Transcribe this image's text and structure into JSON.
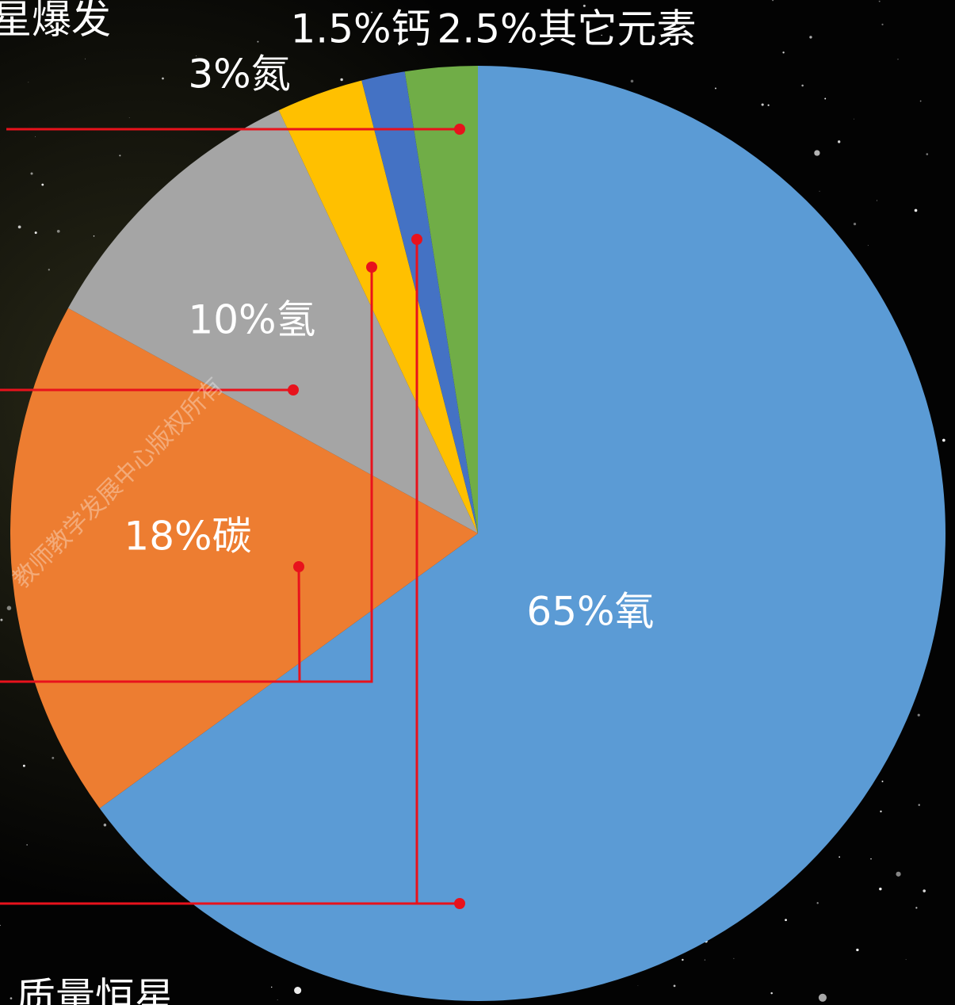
{
  "chart_data": {
    "type": "pie",
    "values": [
      65,
      18,
      10,
      3,
      1.5,
      2.5
    ],
    "value_labels": [
      "65%氧",
      "18%碳",
      "10%氢",
      "3%氮",
      "1.5%钙",
      "2.5%其它元素"
    ],
    "colors": [
      "#5b9bd5",
      "#ed7d31",
      "#a5a5a5",
      "#ffc000",
      "#4472c4",
      "#70ad47"
    ],
    "annotations": [
      "星爆发",
      "质量恒星"
    ],
    "watermark": "教师教学发展中心版权所有"
  }
}
